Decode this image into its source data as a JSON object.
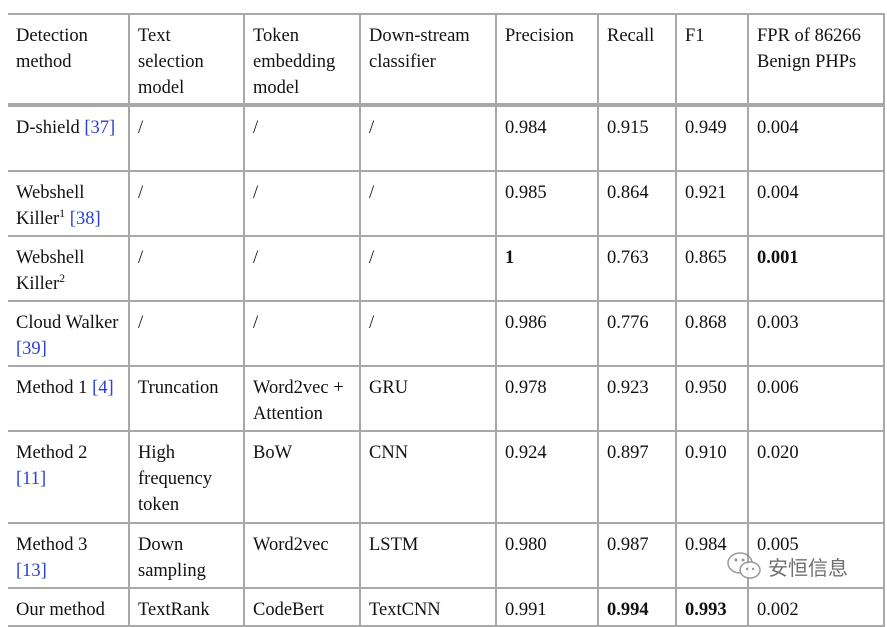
{
  "table": {
    "headers": [
      "Detection method",
      "Text selection model",
      "Token embedding model",
      "Down-stream classifier",
      "Precision",
      "Recall",
      "F1",
      "FPR of 86266 Benign PHPs"
    ],
    "rows": [
      {
        "method": "D-shield",
        "sup": "",
        "ref": "[37]",
        "text": "/",
        "embed": "/",
        "clf": "/",
        "precision": "0.984",
        "recall": "0.915",
        "f1": "0.949",
        "fpr": "0.004",
        "bold": []
      },
      {
        "method": "Webshell Killer",
        "sup": "1",
        "ref": "[38]",
        "text": "/",
        "embed": "/",
        "clf": "/",
        "precision": "0.985",
        "recall": "0.864",
        "f1": "0.921",
        "fpr": "0.004",
        "bold": []
      },
      {
        "method": "Webshell Killer",
        "sup": "2",
        "ref": "",
        "text": "/",
        "embed": "/",
        "clf": "/",
        "precision": "1",
        "recall": "0.763",
        "f1": "0.865",
        "fpr": "0.001",
        "bold": [
          "precision",
          "fpr"
        ]
      },
      {
        "method": "Cloud Walker",
        "sup": "",
        "ref": "[39]",
        "text": "/",
        "embed": "/",
        "clf": "/",
        "precision": "0.986",
        "recall": "0.776",
        "f1": "0.868",
        "fpr": "0.003",
        "bold": []
      },
      {
        "method": "Method 1",
        "sup": "",
        "ref": "[4]",
        "text": "Truncation",
        "embed": "Word2vec + Attention",
        "clf": "GRU",
        "precision": "0.978",
        "recall": "0.923",
        "f1": "0.950",
        "fpr": "0.006",
        "bold": []
      },
      {
        "method": "Method 2",
        "sup": "",
        "ref": "[11]",
        "text": "High frequency token",
        "embed": "BoW",
        "clf": "CNN",
        "precision": "0.924",
        "recall": "0.897",
        "f1": "0.910",
        "fpr": "0.020",
        "bold": []
      },
      {
        "method": "Method 3",
        "sup": "",
        "ref": "[13]",
        "text": "Down sampling",
        "embed": "Word2vec",
        "clf": "LSTM",
        "precision": "0.980",
        "recall": "0.987",
        "f1": "0.984",
        "fpr": "0.005",
        "bold": []
      },
      {
        "method": "Our method",
        "sup": "",
        "ref": "",
        "text": "TextRank",
        "embed": "CodeBert",
        "clf": "TextCNN",
        "precision": "0.991",
        "recall": "0.994",
        "f1": "0.993",
        "fpr": "0.002",
        "bold": [
          "recall",
          "f1"
        ]
      }
    ]
  },
  "watermark": {
    "text": "安恒信息",
    "icon": "wechat-icon"
  },
  "colors": {
    "ref_link": "#2a3fd6",
    "rule": "#a8a8a8"
  }
}
